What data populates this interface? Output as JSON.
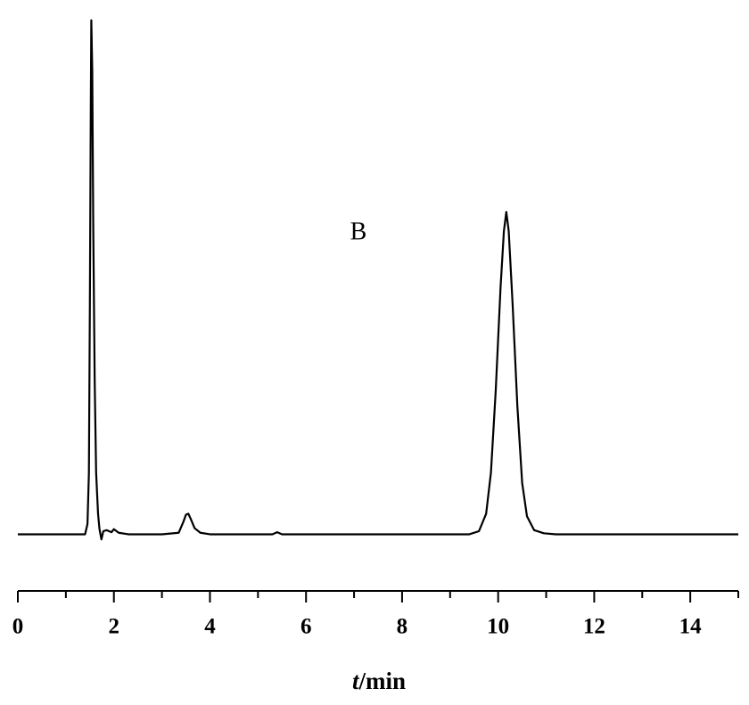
{
  "chart_data": {
    "type": "line",
    "annotation": "B",
    "xlabel": [
      "t",
      "/min"
    ],
    "xlim": [
      0,
      15
    ],
    "xticks": [
      0,
      2,
      4,
      6,
      8,
      10,
      12,
      14
    ],
    "xminorticks": [
      1,
      3,
      5,
      7,
      9,
      11,
      13,
      15
    ],
    "ylim": [
      -2,
      101
    ],
    "color": "#000000",
    "x": [
      0,
      1.0,
      1.4,
      1.45,
      1.48,
      1.5,
      1.52,
      1.53,
      1.55,
      1.57,
      1.6,
      1.63,
      1.67,
      1.7,
      1.74,
      1.78,
      1.85,
      1.95,
      2.0,
      2.1,
      2.3,
      3.0,
      3.35,
      3.45,
      3.5,
      3.55,
      3.6,
      3.68,
      3.8,
      4.0,
      5.3,
      5.4,
      5.5,
      9.4,
      9.6,
      9.75,
      9.85,
      9.95,
      10.05,
      10.12,
      10.17,
      10.22,
      10.3,
      10.4,
      10.5,
      10.6,
      10.75,
      10.95,
      11.2,
      15
    ],
    "values": [
      0,
      0,
      0,
      2,
      12,
      45,
      85,
      100,
      90,
      60,
      30,
      12,
      4,
      1,
      -1,
      0.6,
      0.8,
      0.4,
      1,
      0.3,
      0,
      0,
      0.3,
      2.5,
      3.8,
      4,
      3,
      1.2,
      0.3,
      0,
      0,
      0.4,
      0,
      0,
      0.6,
      4,
      12,
      28,
      48,
      59,
      62.7,
      59,
      45,
      25,
      10,
      3.5,
      0.8,
      0.2,
      0,
      0
    ]
  }
}
